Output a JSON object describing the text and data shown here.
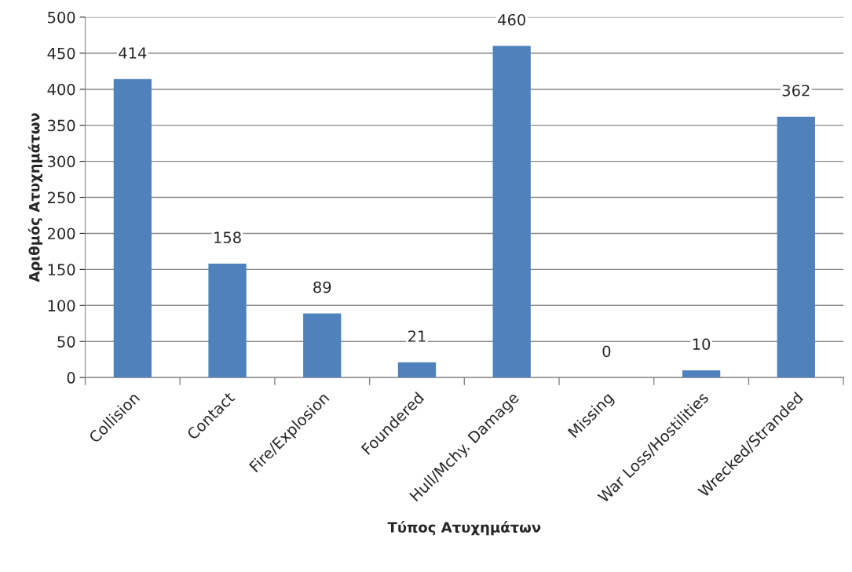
{
  "chart_data": {
    "type": "bar",
    "xlabel": "Τύπος Ατυχημάτων",
    "ylabel": "Αριθμός Ατυχημάτων",
    "categories": [
      "Collision",
      "Contact",
      "Fire/Explosion",
      "Foundered",
      "Hull/Mchy. Damage",
      "Missing",
      "War Loss/Hostilities",
      "Wrecked/Stranded"
    ],
    "values": [
      414,
      158,
      89,
      21,
      460,
      0,
      10,
      362
    ],
    "color": "#4f81bd",
    "ylim": [
      0,
      500
    ],
    "yticks": [
      0,
      50,
      100,
      150,
      200,
      250,
      300,
      350,
      400,
      450,
      500
    ],
    "grid": "y",
    "data_labels": true
  }
}
